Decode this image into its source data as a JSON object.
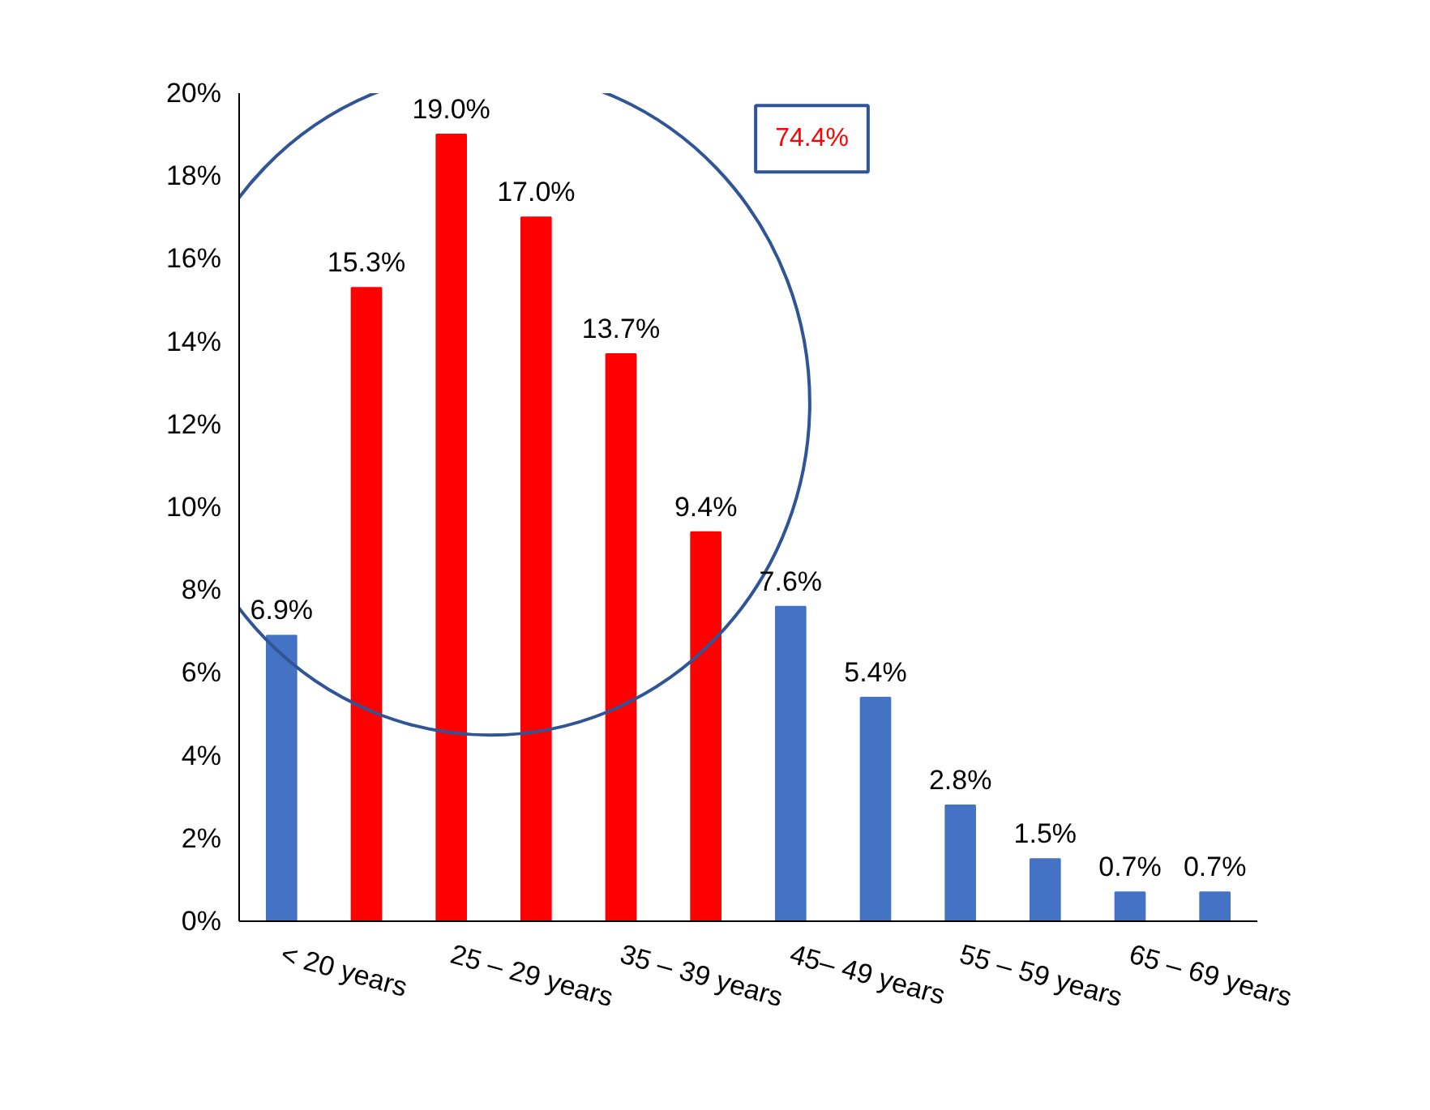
{
  "chart_data": {
    "type": "bar",
    "categories": [
      "< 20 years",
      null,
      "25 – 29 years",
      null,
      "35 – 39 years",
      null,
      "45– 49 years",
      null,
      "55 – 59 years",
      null,
      "65 – 69 years",
      null
    ],
    "values": [
      6.9,
      15.3,
      19.0,
      17.0,
      13.7,
      9.4,
      7.6,
      5.4,
      2.8,
      1.5,
      0.7,
      0.7
    ],
    "colors": [
      "#4472c4",
      "#ff0000",
      "#ff0000",
      "#ff0000",
      "#ff0000",
      "#ff0000",
      "#4472c4",
      "#4472c4",
      "#4472c4",
      "#4472c4",
      "#4472c4",
      "#4472c4"
    ],
    "value_labels": [
      "6.9%",
      "15.3%",
      "19.0%",
      "17.0%",
      "13.7%",
      "9.4%",
      "7.6%",
      "5.4%",
      "2.8%",
      "1.5%",
      "0.7%",
      "0.7%"
    ],
    "annotations": [
      "74.4%"
    ],
    "ylim": [
      0,
      20
    ],
    "yticks": [
      {
        "value": 0,
        "label": "0%"
      },
      {
        "value": 2,
        "label": "2%"
      },
      {
        "value": 4,
        "label": "4%"
      },
      {
        "value": 6,
        "label": "6%"
      },
      {
        "value": 8,
        "label": "8%"
      },
      {
        "value": 10,
        "label": "10%"
      },
      {
        "value": 12,
        "label": "12%"
      },
      {
        "value": 14,
        "label": "14%"
      },
      {
        "value": 16,
        "label": "16%"
      },
      {
        "value": 18,
        "label": "18%"
      },
      {
        "value": 20,
        "label": "20%"
      }
    ],
    "grid": false
  }
}
